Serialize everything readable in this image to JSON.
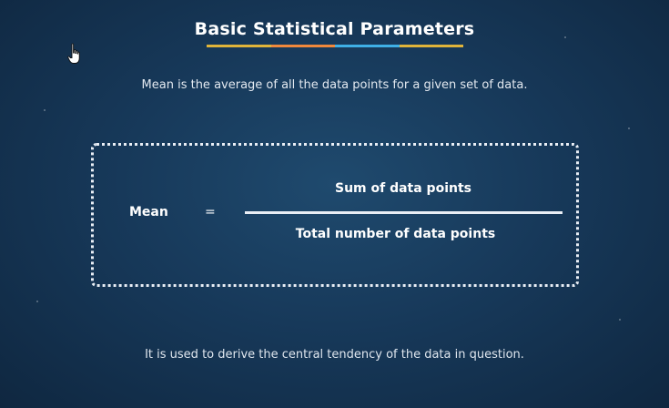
{
  "slide": {
    "title": "Basic Statistical Parameters",
    "definition": "Mean is the average of all the data points for a given set of data.",
    "formula": {
      "lhs": "Mean",
      "operator": "=",
      "numerator": "Sum of data points",
      "denominator": "Total number of data points"
    },
    "usage_note": "It is used to derive the central tendency of the data in question."
  },
  "colors": {
    "background": "#17395a",
    "underline_segments": [
      "#e0b43a",
      "#f0883c",
      "#3fb0e6",
      "#e0b43a"
    ],
    "text": "#e9eef5"
  },
  "icons": {
    "cursor": "hand-pointer-icon"
  }
}
